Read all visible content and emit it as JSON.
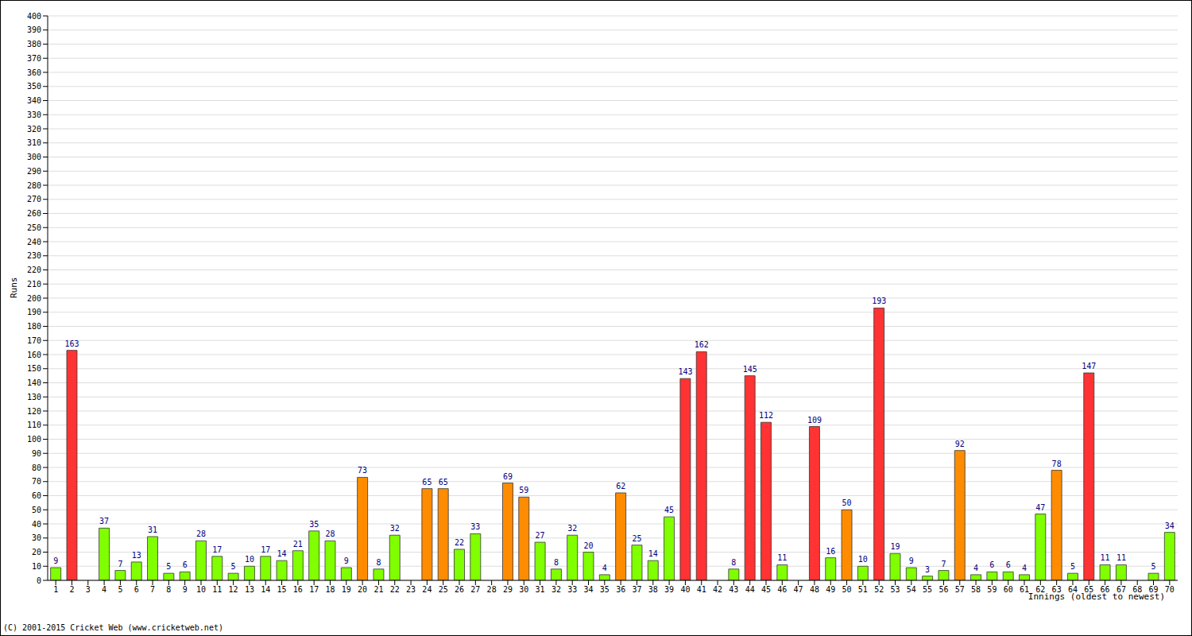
{
  "chart_data": {
    "type": "bar",
    "x_label": "Innings (oldest to newest)",
    "y_label": "Runs",
    "annotations": [
      "(C) 2001-2015 Cricket Web (www.cricketweb.net)"
    ],
    "categories": [
      1,
      2,
      3,
      4,
      5,
      6,
      7,
      8,
      9,
      10,
      11,
      12,
      13,
      14,
      15,
      16,
      17,
      18,
      19,
      20,
      21,
      22,
      23,
      24,
      25,
      26,
      27,
      28,
      29,
      30,
      31,
      32,
      33,
      34,
      35,
      36,
      37,
      38,
      39,
      40,
      41,
      42,
      43,
      44,
      45,
      46,
      47,
      48,
      49,
      50,
      51,
      52,
      53,
      54,
      55,
      56,
      57,
      58,
      59,
      60,
      61,
      62,
      63,
      64,
      65,
      66,
      67,
      68,
      69,
      70
    ],
    "values": [
      9,
      163,
      0,
      37,
      7,
      13,
      31,
      5,
      6,
      28,
      17,
      5,
      10,
      17,
      14,
      21,
      35,
      28,
      9,
      73,
      8,
      32,
      0,
      65,
      65,
      22,
      33,
      0,
      69,
      59,
      27,
      8,
      32,
      20,
      4,
      62,
      25,
      14,
      45,
      143,
      162,
      0,
      8,
      145,
      112,
      11,
      0,
      109,
      16,
      50,
      10,
      193,
      19,
      9,
      3,
      7,
      92,
      4,
      6,
      6,
      4,
      47,
      78,
      5,
      147,
      11,
      11,
      0,
      5,
      34
    ],
    "colors": [
      "#80ff00",
      "#ff3333",
      "#80ff00",
      "#80ff00",
      "#80ff00",
      "#80ff00",
      "#80ff00",
      "#80ff00",
      "#80ff00",
      "#80ff00",
      "#80ff00",
      "#80ff00",
      "#80ff00",
      "#80ff00",
      "#80ff00",
      "#80ff00",
      "#80ff00",
      "#80ff00",
      "#80ff00",
      "#ff8c00",
      "#80ff00",
      "#80ff00",
      "#80ff00",
      "#ff8c00",
      "#ff8c00",
      "#80ff00",
      "#80ff00",
      "#80ff00",
      "#ff8c00",
      "#ff8c00",
      "#80ff00",
      "#80ff00",
      "#80ff00",
      "#80ff00",
      "#80ff00",
      "#ff8c00",
      "#80ff00",
      "#80ff00",
      "#80ff00",
      "#ff3333",
      "#ff3333",
      "#80ff00",
      "#80ff00",
      "#ff3333",
      "#ff3333",
      "#80ff00",
      "#80ff00",
      "#ff3333",
      "#80ff00",
      "#ff8c00",
      "#80ff00",
      "#ff3333",
      "#80ff00",
      "#80ff00",
      "#80ff00",
      "#80ff00",
      "#ff8c00",
      "#80ff00",
      "#80ff00",
      "#80ff00",
      "#80ff00",
      "#80ff00",
      "#ff8c00",
      "#80ff00",
      "#ff3333",
      "#80ff00",
      "#80ff00",
      "#80ff00",
      "#80ff00",
      "#80ff00"
    ],
    "ylim": [
      0,
      400
    ],
    "yticks": [
      0,
      10,
      20,
      30,
      40,
      50,
      60,
      70,
      80,
      90,
      100,
      110,
      120,
      130,
      140,
      150,
      160,
      170,
      180,
      190,
      200,
      210,
      220,
      230,
      240,
      250,
      260,
      270,
      280,
      290,
      300,
      310,
      320,
      330,
      340,
      350,
      360,
      370,
      380,
      390,
      400
    ],
    "grid": true,
    "data_labels": true
  }
}
